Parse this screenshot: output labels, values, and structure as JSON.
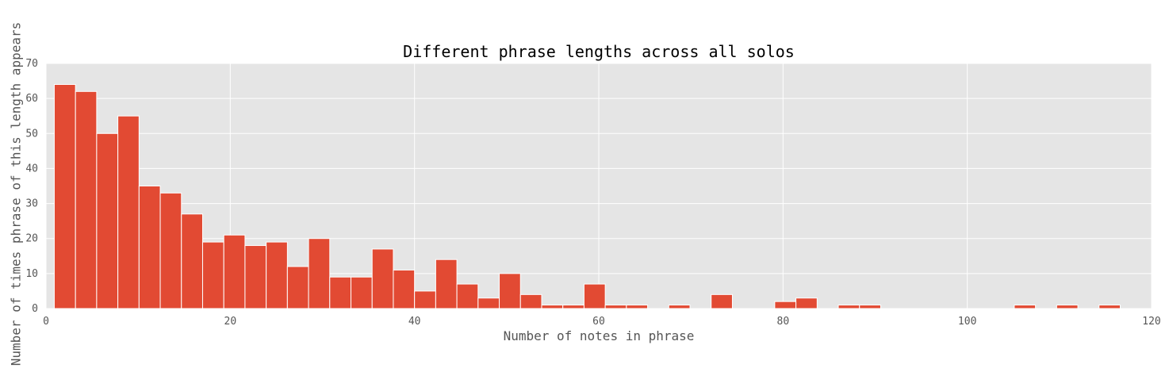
{
  "chart_data": {
    "type": "bar",
    "title": "Different phrase lengths across all solos",
    "xlabel": "Number of notes in phrase",
    "ylabel": "Number of times phrase of this length appears",
    "xlim": [
      0,
      120
    ],
    "ylim": [
      0,
      70
    ],
    "xticks": [
      "0",
      "20",
      "40",
      "60",
      "80",
      "100",
      "120"
    ],
    "yticks": [
      "0",
      "10",
      "20",
      "30",
      "40",
      "50",
      "60",
      "70"
    ],
    "grid": true,
    "bin_width": 2.3,
    "bins": [
      {
        "start": 0.9,
        "count": 64
      },
      {
        "start": 3.2,
        "count": 62
      },
      {
        "start": 5.5,
        "count": 50
      },
      {
        "start": 7.8,
        "count": 55
      },
      {
        "start": 10.1,
        "count": 35
      },
      {
        "start": 12.4,
        "count": 33
      },
      {
        "start": 14.7,
        "count": 27
      },
      {
        "start": 17.0,
        "count": 19
      },
      {
        "start": 19.3,
        "count": 21
      },
      {
        "start": 21.6,
        "count": 18
      },
      {
        "start": 23.9,
        "count": 19
      },
      {
        "start": 26.2,
        "count": 12
      },
      {
        "start": 28.5,
        "count": 20
      },
      {
        "start": 30.8,
        "count": 9
      },
      {
        "start": 33.1,
        "count": 9
      },
      {
        "start": 35.4,
        "count": 17
      },
      {
        "start": 37.7,
        "count": 11
      },
      {
        "start": 40.0,
        "count": 5
      },
      {
        "start": 42.3,
        "count": 14
      },
      {
        "start": 44.6,
        "count": 7
      },
      {
        "start": 46.9,
        "count": 3
      },
      {
        "start": 49.2,
        "count": 10
      },
      {
        "start": 51.5,
        "count": 4
      },
      {
        "start": 53.8,
        "count": 1
      },
      {
        "start": 56.1,
        "count": 1
      },
      {
        "start": 58.4,
        "count": 7
      },
      {
        "start": 60.7,
        "count": 1
      },
      {
        "start": 63.0,
        "count": 1
      },
      {
        "start": 67.6,
        "count": 1
      },
      {
        "start": 72.2,
        "count": 4
      },
      {
        "start": 79.1,
        "count": 2
      },
      {
        "start": 81.4,
        "count": 3
      },
      {
        "start": 86.0,
        "count": 1
      },
      {
        "start": 88.3,
        "count": 1
      },
      {
        "start": 105.1,
        "count": 1
      },
      {
        "start": 109.7,
        "count": 1
      },
      {
        "start": 114.3,
        "count": 1
      }
    ],
    "colors": {
      "bar": "#E24A33",
      "plot_background": "#E5E5E5",
      "grid": "#FFFFFF"
    }
  }
}
